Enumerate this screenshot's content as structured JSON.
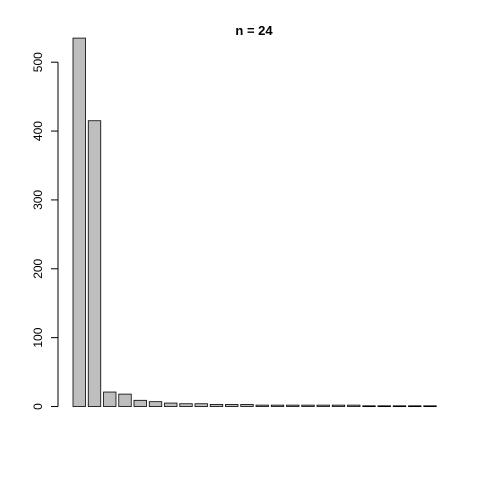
{
  "chart_data": {
    "type": "bar",
    "title": "n =  24",
    "xlabel": "",
    "ylabel": "",
    "ylim": [
      0,
      560
    ],
    "yticks": [
      0,
      100,
      200,
      300,
      400,
      500
    ],
    "values": [
      535,
      415,
      21,
      18,
      9,
      7,
      5,
      4,
      4,
      3,
      3,
      3,
      2,
      2,
      2,
      2,
      2,
      2,
      2,
      1,
      1,
      1,
      1,
      1
    ],
    "colors": {
      "bar_fill": "#bebebe",
      "bar_stroke": "#000000",
      "background": "#ffffff"
    }
  }
}
